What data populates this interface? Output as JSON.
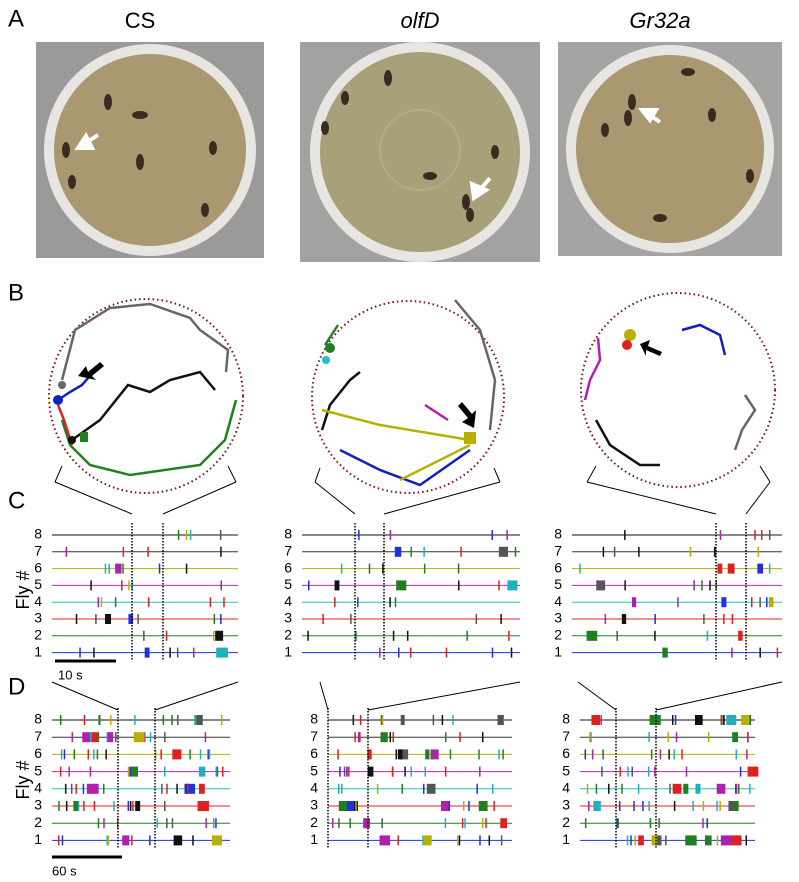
{
  "panel_labels": [
    "A",
    "B",
    "C",
    "D"
  ],
  "genotypes": [
    "CS",
    "olfD",
    "Gr32a"
  ],
  "fly_numbers": [
    "8",
    "7",
    "6",
    "5",
    "4",
    "3",
    "2",
    "1"
  ],
  "y_axis_label": "Fly #",
  "scale_bars": {
    "C": "10 s",
    "D": "60 s"
  }
}
